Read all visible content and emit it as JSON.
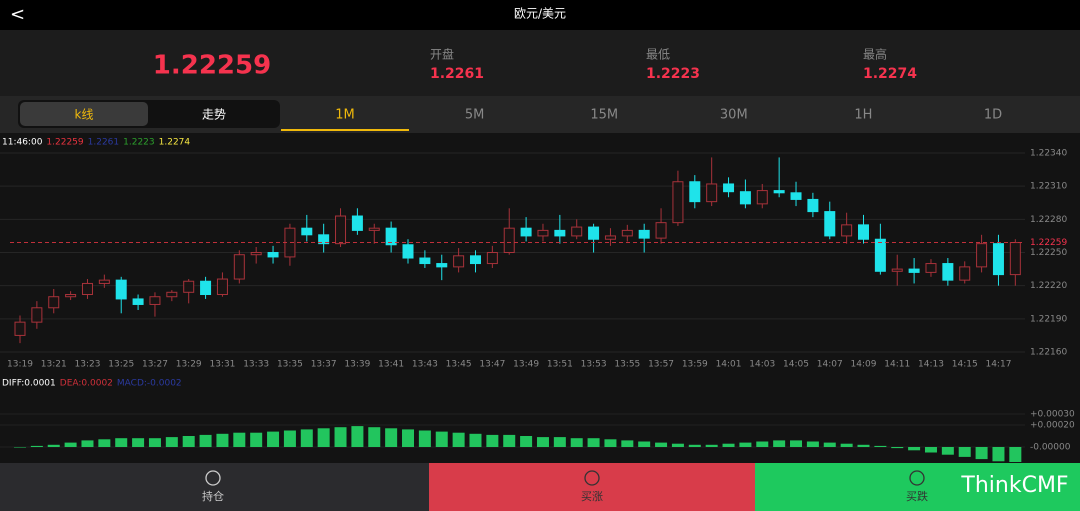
{
  "header": {
    "back": "<",
    "title": "欧元/美元"
  },
  "quote": {
    "price": "1.22259",
    "stats": [
      {
        "label": "开盘",
        "value": "1.2261"
      },
      {
        "label": "最低",
        "value": "1.2223"
      },
      {
        "label": "最高",
        "value": "1.2274"
      }
    ]
  },
  "tabs": {
    "modes": [
      "k线",
      "走势"
    ],
    "periods": [
      "1M",
      "5M",
      "15M",
      "30M",
      "1H",
      "1D"
    ]
  },
  "chart_data": {
    "type": "candlestick",
    "legend": [
      {
        "text": "11:46:00",
        "color": "#ffffff"
      },
      {
        "text": "1.22259",
        "color": "#e8333f"
      },
      {
        "text": "1.2261",
        "color": "#2b3aa0"
      },
      {
        "text": "1.2223",
        "color": "#2ca02c"
      },
      {
        "text": "1.2274",
        "color": "#f5e642"
      }
    ],
    "categories": [
      "13:19",
      null,
      "13:21",
      null,
      "13:23",
      null,
      "13:25",
      null,
      "13:27",
      null,
      "13:29",
      null,
      "13:31",
      null,
      "13:33",
      null,
      "13:35",
      null,
      "13:37",
      null,
      "13:39",
      null,
      "13:41",
      null,
      "13:43",
      null,
      "13:45",
      null,
      "13:47",
      null,
      "13:49",
      null,
      "13:51",
      null,
      "13:53",
      null,
      "13:55",
      null,
      "13:57",
      null,
      "13:59",
      null,
      "14:01",
      null,
      "14:03",
      null,
      "14:05",
      null,
      "14:07",
      null,
      "14:09",
      null,
      "14:11",
      null,
      "14:13",
      null,
      "14:15",
      null,
      "14:17",
      null
    ],
    "open": [
      1.22175,
      1.22187,
      1.222,
      1.2221,
      1.22212,
      1.22222,
      1.22225,
      1.22208,
      1.22203,
      1.2221,
      1.22214,
      1.22224,
      1.22212,
      1.22226,
      1.22248,
      1.2225,
      1.22246,
      1.22272,
      1.22266,
      1.22258,
      1.22283,
      1.2227,
      1.22272,
      1.22257,
      1.22245,
      1.2224,
      1.22237,
      1.22247,
      1.2224,
      1.2225,
      1.22272,
      1.22265,
      1.2227,
      1.22265,
      1.22273,
      1.22262,
      1.22265,
      1.2227,
      1.22263,
      1.22277,
      1.22314,
      1.22296,
      1.22312,
      1.22305,
      1.22294,
      1.22306,
      1.22304,
      1.22298,
      1.22287,
      1.22265,
      1.22275,
      1.22262,
      1.22233,
      1.22235,
      1.22232,
      1.2224,
      1.22225,
      1.22237,
      1.22258,
      1.2223
    ],
    "high": [
      1.22193,
      1.22206,
      1.22217,
      1.22215,
      1.22226,
      1.2223,
      1.22228,
      1.22212,
      1.22214,
      1.22216,
      1.22226,
      1.22228,
      1.22232,
      1.22252,
      1.22255,
      1.22256,
      1.22276,
      1.22284,
      1.22276,
      1.2229,
      1.2229,
      1.22276,
      1.22278,
      1.22262,
      1.22252,
      1.22248,
      1.22254,
      1.22252,
      1.22256,
      1.2229,
      1.22282,
      1.22276,
      1.22284,
      1.2228,
      1.22276,
      1.22272,
      1.22275,
      1.22276,
      1.2229,
      1.22324,
      1.2232,
      1.22336,
      1.22318,
      1.22316,
      1.22312,
      1.22336,
      1.22314,
      1.22304,
      1.22296,
      1.22286,
      1.22284,
      1.22276,
      1.22248,
      1.22245,
      1.22244,
      1.22245,
      1.22242,
      1.22266,
      1.22266,
      1.22262
    ],
    "low": [
      1.22168,
      1.22181,
      1.22195,
      1.22207,
      1.22208,
      1.22218,
      1.22195,
      1.22198,
      1.22192,
      1.22206,
      1.22204,
      1.22208,
      1.2221,
      1.22222,
      1.2224,
      1.2224,
      1.22238,
      1.2226,
      1.2225,
      1.22255,
      1.22266,
      1.22258,
      1.2225,
      1.2224,
      1.22236,
      1.22225,
      1.22232,
      1.22232,
      1.22236,
      1.22248,
      1.2226,
      1.2226,
      1.22258,
      1.22262,
      1.2225,
      1.22256,
      1.2226,
      1.2225,
      1.22258,
      1.22274,
      1.2229,
      1.22292,
      1.223,
      1.2229,
      1.2229,
      1.223,
      1.22292,
      1.22282,
      1.22262,
      1.22258,
      1.22258,
      1.2223,
      1.2222,
      1.22222,
      1.22228,
      1.2222,
      1.22222,
      1.22232,
      1.2222,
      1.2222
    ],
    "close": [
      1.22187,
      1.222,
      1.2221,
      1.22212,
      1.22222,
      1.22225,
      1.22208,
      1.22203,
      1.2221,
      1.22214,
      1.22224,
      1.22212,
      1.22226,
      1.22248,
      1.2225,
      1.22246,
      1.22272,
      1.22266,
      1.22258,
      1.22283,
      1.2227,
      1.22272,
      1.22257,
      1.22245,
      1.2224,
      1.22237,
      1.22247,
      1.2224,
      1.2225,
      1.22272,
      1.22265,
      1.2227,
      1.22265,
      1.22273,
      1.22262,
      1.22265,
      1.2227,
      1.22263,
      1.22277,
      1.22314,
      1.22296,
      1.22312,
      1.22305,
      1.22294,
      1.22306,
      1.22304,
      1.22298,
      1.22287,
      1.22265,
      1.22275,
      1.22262,
      1.22233,
      1.22235,
      1.22232,
      1.2224,
      1.22225,
      1.22237,
      1.22258,
      1.2223,
      1.22259
    ],
    "up_color": "#a8323a",
    "down_color": "#1fe3ea",
    "ylim": [
      1.2216,
      1.2234
    ],
    "yticks": [
      {
        "value": 1.2216,
        "label": "1.22160"
      },
      {
        "value": 1.2219,
        "label": "1.22190"
      },
      {
        "value": 1.2222,
        "label": "1.22220"
      },
      {
        "value": 1.2225,
        "label": "1.22250"
      },
      {
        "value": 1.2228,
        "label": "1.22280"
      },
      {
        "value": 1.2231,
        "label": "1.22310"
      },
      {
        "value": 1.2234,
        "label": "1.22340"
      }
    ],
    "last_price": {
      "value": 1.22259,
      "label": "1.22259"
    },
    "grid": true
  },
  "macd": {
    "legend": [
      {
        "text": "DIFF:0.0001",
        "color": "#ffffff"
      },
      {
        "text": "DEA:0.0002",
        "color": "#d0303a"
      },
      {
        "text": "MACD:-0.0002",
        "color": "#2b3aa0"
      }
    ],
    "values": [
      0,
      1e-05,
      2e-05,
      4e-05,
      6e-05,
      7e-05,
      8e-05,
      8e-05,
      8e-05,
      9e-05,
      0.0001,
      0.00011,
      0.00012,
      0.00013,
      0.00013,
      0.00014,
      0.00015,
      0.00016,
      0.00017,
      0.00018,
      0.00019,
      0.00018,
      0.00017,
      0.00016,
      0.00015,
      0.00014,
      0.00013,
      0.00012,
      0.00011,
      0.00011,
      0.0001,
      9e-05,
      9e-05,
      8e-05,
      8e-05,
      7e-05,
      6e-05,
      5e-05,
      4e-05,
      3e-05,
      2e-05,
      2e-05,
      3e-05,
      4e-05,
      5e-05,
      6e-05,
      6e-05,
      5e-05,
      4e-05,
      3e-05,
      2e-05,
      1e-05,
      -1e-05,
      -3e-05,
      -5e-05,
      -7e-05,
      -9e-05,
      -0.00011,
      -0.00013,
      -0.00015
    ],
    "color": "#22c55e",
    "yticks": [
      {
        "value": 0.0003,
        "label": "+0.00030"
      },
      {
        "value": 0.0002,
        "label": "+0.00020"
      },
      {
        "value": 0,
        "label": "-0.00000"
      }
    ]
  },
  "footer": {
    "buttons": [
      "持仓",
      "买涨",
      "买跌"
    ],
    "watermark": "ThinkCMF"
  }
}
